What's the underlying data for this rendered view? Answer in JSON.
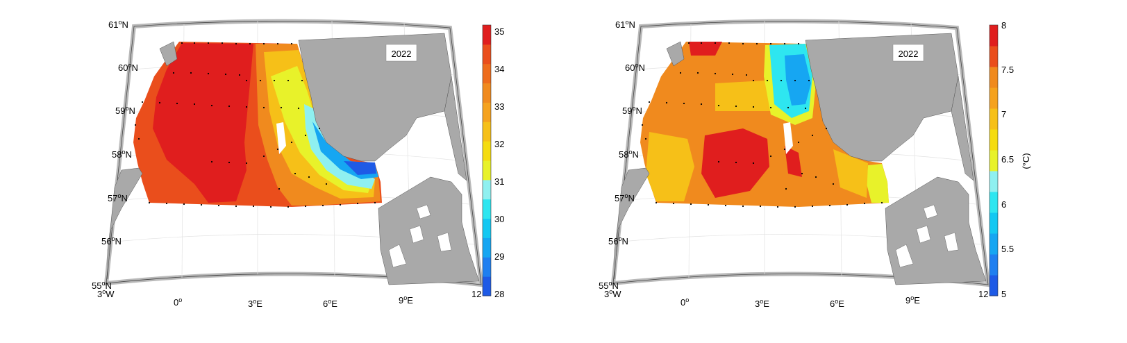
{
  "colors": {
    "land": "#a9a9a9",
    "frame": "#b9b9b9",
    "salinity_scale": [
      "#1e5ae6",
      "#1f7ff0",
      "#16a6f2",
      "#14c8f2",
      "#2ee6f0",
      "#8ff0f0",
      "#e8f22a",
      "#f5dc10",
      "#f6c018",
      "#f5a21e",
      "#f08a1e",
      "#ee6c1c",
      "#ea4e1c",
      "#e01e1e"
    ],
    "temperature_scale": [
      "#1e5ae6",
      "#1f7ff0",
      "#16a6f2",
      "#14c8f2",
      "#2ee6f0",
      "#8ff0f0",
      "#e8f22a",
      "#f5dc10",
      "#f6c018",
      "#f5a21e",
      "#f08a1e",
      "#ea4e1c",
      "#e01e1e"
    ]
  },
  "map": {
    "lat_labels": [
      {
        "deg": "55",
        "hem": "N"
      },
      {
        "deg": "56",
        "hem": "N"
      },
      {
        "deg": "57",
        "hem": "N"
      },
      {
        "deg": "58",
        "hem": "N"
      },
      {
        "deg": "59",
        "hem": "N"
      },
      {
        "deg": "60",
        "hem": "N"
      },
      {
        "deg": "61",
        "hem": "N"
      }
    ],
    "lon_labels": [
      {
        "deg": "3",
        "hem": "W"
      },
      {
        "deg": "0",
        "hem": ""
      },
      {
        "deg": "3",
        "hem": "E"
      },
      {
        "deg": "6",
        "hem": "E"
      },
      {
        "deg": "9",
        "hem": "E"
      },
      {
        "deg": "12",
        "hem": ""
      }
    ],
    "degree_symbol": "o"
  },
  "panels": [
    {
      "id": "salinity",
      "year_label": "2022",
      "colorbar": {
        "ticks": [
          "35",
          "34",
          "33",
          "32",
          "31",
          "30",
          "29",
          "28"
        ],
        "unit_label": ""
      }
    },
    {
      "id": "temperature",
      "year_label": "2022",
      "colorbar": {
        "ticks": [
          "8",
          "7.5",
          "7",
          "6.5",
          "6",
          "5.5",
          "5"
        ],
        "unit_label": "(°C)"
      }
    }
  ]
}
